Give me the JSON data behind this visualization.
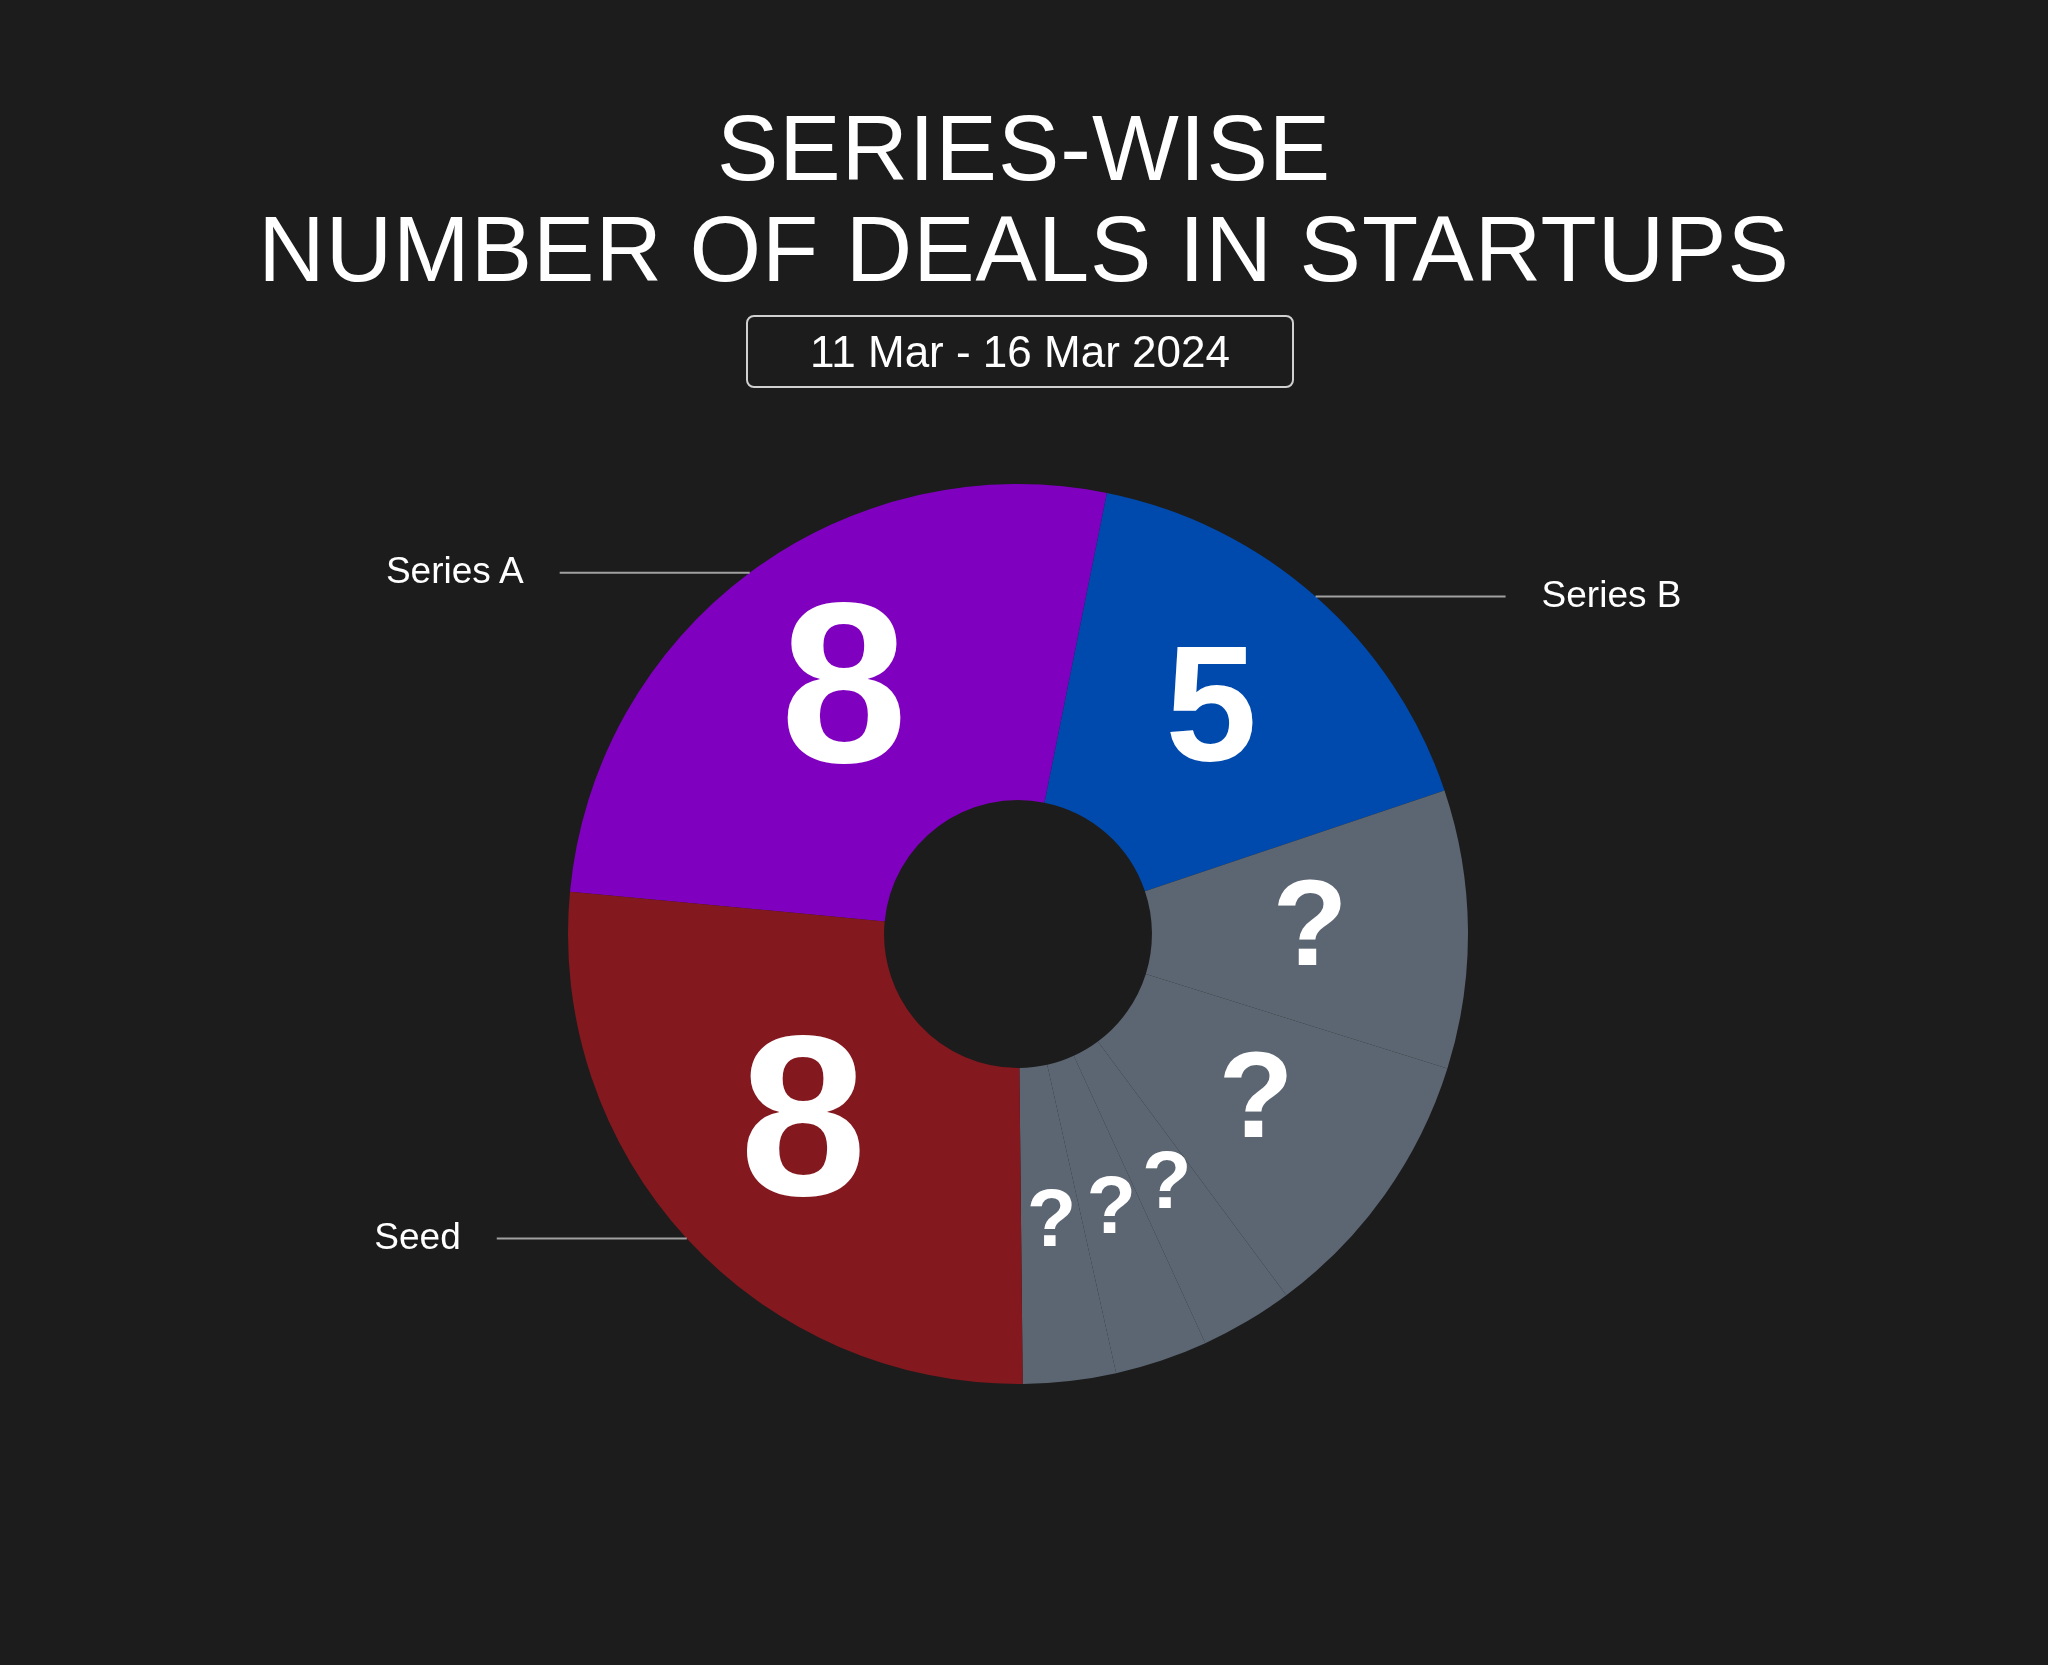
{
  "chart_data": {
    "type": "donut",
    "title": "SERIES-WISE\nNUMBER OF DEALS IN STARTUPS",
    "subtitle": "11 Mar - 16 Mar 2024",
    "categories": [
      "Series A",
      "Series B",
      null,
      null,
      null,
      null,
      null,
      "Seed"
    ],
    "values": [
      8,
      5,
      3,
      3,
      1,
      1,
      1,
      8
    ],
    "colors": [
      "#8000c0",
      "#004aad",
      "#5c6672",
      "#5c6672",
      "#5c6672",
      "#5c6672",
      "#5c6672",
      "#84181f"
    ],
    "value_labels": [
      "8",
      "5",
      "?",
      "?",
      "?",
      "?",
      "?",
      "8"
    ],
    "legend": false
  }
}
